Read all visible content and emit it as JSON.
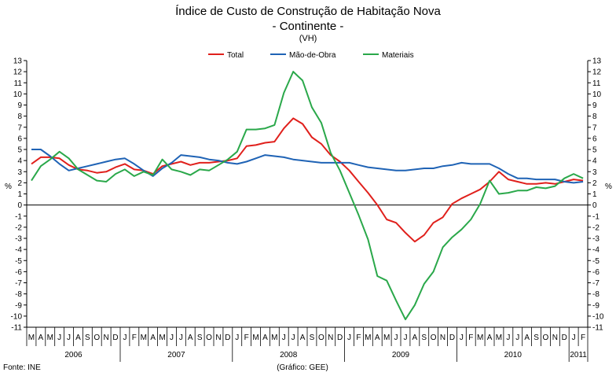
{
  "chart_data": {
    "type": "line",
    "title": "Índice de Custo de Construção de Habitação Nova",
    "subtitle": "- Continente -",
    "unit_note": "(VH)",
    "ylabel_left": "%",
    "ylabel_right": "%",
    "source": "Fonte: INE",
    "credit": "(Gráfico: GEE)",
    "ylim": [
      -11,
      13
    ],
    "yticks": [
      -11,
      -10,
      -9,
      -8,
      -7,
      -6,
      -5,
      -4,
      -3,
      -2,
      -1,
      0,
      1,
      2,
      3,
      4,
      5,
      6,
      7,
      8,
      9,
      10,
      11,
      12,
      13
    ],
    "grid": false,
    "legend_position": "top-center",
    "months": [
      "M",
      "A",
      "M",
      "J",
      "J",
      "A",
      "S",
      "O",
      "N",
      "D",
      "J",
      "F",
      "M",
      "A",
      "M",
      "J",
      "J",
      "A",
      "S",
      "O",
      "N",
      "D",
      "J",
      "F",
      "M",
      "A",
      "M",
      "J",
      "J",
      "A",
      "S",
      "O",
      "N",
      "D",
      "J",
      "F",
      "M",
      "A",
      "M",
      "J",
      "J",
      "A",
      "S",
      "O",
      "N",
      "D",
      "J",
      "F",
      "M",
      "A",
      "M",
      "J",
      "J",
      "A",
      "S",
      "O",
      "N",
      "D",
      "J",
      "F"
    ],
    "years": [
      {
        "label": "2006",
        "start": 0,
        "count": 10
      },
      {
        "label": "2007",
        "start": 10,
        "count": 12
      },
      {
        "label": "2008",
        "start": 22,
        "count": 12
      },
      {
        "label": "2009",
        "start": 34,
        "count": 12
      },
      {
        "label": "2010",
        "start": 46,
        "count": 12
      },
      {
        "label": "2011",
        "start": 58,
        "count": 2
      }
    ],
    "series": [
      {
        "name": "Total",
        "color": "#e0201c",
        "values": [
          3.7,
          4.3,
          4.3,
          4.2,
          3.6,
          3.2,
          3.1,
          2.9,
          3.0,
          3.4,
          3.7,
          3.2,
          3.1,
          2.8,
          3.5,
          3.7,
          3.9,
          3.6,
          3.8,
          3.8,
          3.9,
          4.0,
          4.2,
          5.3,
          5.4,
          5.6,
          5.7,
          6.9,
          7.8,
          7.3,
          6.1,
          5.5,
          4.5,
          3.9,
          3.1,
          2.1,
          1.1,
          0.0,
          -1.3,
          -1.6,
          -2.5,
          -3.3,
          -2.7,
          -1.6,
          -1.1,
          0.1,
          0.6,
          1.0,
          1.4,
          2.1,
          3.0,
          2.3,
          2.1,
          1.9,
          1.9,
          2.0,
          1.9,
          2.1,
          2.3,
          2.2
        ]
      },
      {
        "name": "Mão-de-Obra",
        "color": "#1f63b5",
        "values": [
          5.0,
          5.0,
          4.4,
          3.7,
          3.1,
          3.3,
          3.5,
          3.7,
          3.9,
          4.1,
          4.2,
          3.7,
          3.1,
          2.6,
          3.3,
          3.8,
          4.5,
          4.4,
          4.3,
          4.1,
          4.0,
          3.8,
          3.7,
          3.9,
          4.2,
          4.5,
          4.4,
          4.3,
          4.1,
          4.0,
          3.9,
          3.8,
          3.8,
          3.8,
          3.8,
          3.6,
          3.4,
          3.3,
          3.2,
          3.1,
          3.1,
          3.2,
          3.3,
          3.3,
          3.5,
          3.6,
          3.8,
          3.7,
          3.7,
          3.7,
          3.3,
          2.8,
          2.4,
          2.4,
          2.3,
          2.3,
          2.3,
          2.1,
          2.0,
          2.1
        ]
      },
      {
        "name": "Materiais",
        "color": "#2aa84a",
        "values": [
          2.2,
          3.5,
          4.1,
          4.8,
          4.2,
          3.2,
          2.7,
          2.2,
          2.1,
          2.8,
          3.2,
          2.6,
          3.0,
          2.7,
          4.1,
          3.2,
          3.0,
          2.7,
          3.2,
          3.1,
          3.6,
          4.1,
          4.8,
          6.8,
          6.8,
          6.9,
          7.2,
          10.1,
          12.0,
          11.2,
          8.8,
          7.4,
          4.7,
          3.1,
          1.1,
          -0.9,
          -3.1,
          -6.4,
          -6.8,
          -8.6,
          -10.3,
          -9.0,
          -7.1,
          -6.0,
          -3.8,
          -2.9,
          -2.2,
          -1.3,
          0.1,
          2.2,
          1.0,
          1.1,
          1.3,
          1.3,
          1.6,
          1.5,
          1.7,
          2.4,
          2.8,
          2.4
        ]
      }
    ]
  }
}
